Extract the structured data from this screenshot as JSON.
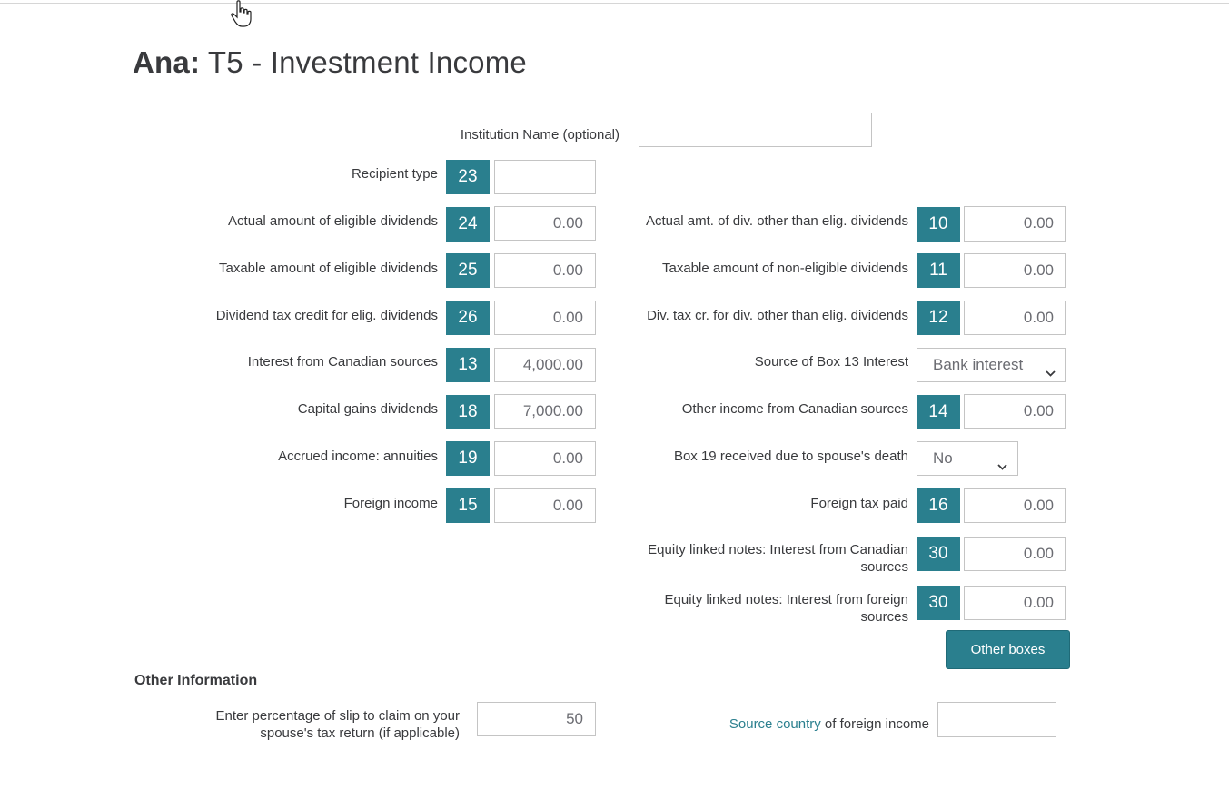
{
  "header": {
    "name": "Ana:",
    "title": "T5 - Investment Income"
  },
  "institution": {
    "label": "Institution Name (optional)",
    "value": ""
  },
  "left_rows": [
    {
      "label": "Recipient type",
      "box": "23",
      "value": ""
    },
    {
      "label": "Actual amount of eligible dividends",
      "box": "24",
      "value": "0.00"
    },
    {
      "label": "Taxable amount of eligible dividends",
      "box": "25",
      "value": "0.00"
    },
    {
      "label": "Dividend tax credit for elig. dividends",
      "box": "26",
      "value": "0.00"
    },
    {
      "label": "Interest from Canadian sources",
      "box": "13",
      "value": "4,000.00"
    },
    {
      "label": "Capital gains dividends",
      "box": "18",
      "value": "7,000.00"
    },
    {
      "label": "Accrued income: annuities",
      "box": "19",
      "value": "0.00"
    },
    {
      "label": "Foreign income",
      "box": "15",
      "value": "0.00"
    }
  ],
  "right_rows": [
    {
      "label": "Actual amt. of div. other than elig. dividends",
      "box": "10",
      "value": "0.00"
    },
    {
      "label": "Taxable amount of non-eligible dividends",
      "box": "11",
      "value": "0.00"
    },
    {
      "label": "Div. tax cr. for div. other than elig. dividends",
      "box": "12",
      "value": "0.00"
    },
    {
      "label": "Source of Box 13 Interest",
      "select": "Bank interest"
    },
    {
      "label": "Other income from Canadian sources",
      "box": "14",
      "value": "0.00"
    },
    {
      "label": "Box 19 received due to spouse's death",
      "select": "No"
    },
    {
      "label": "Foreign tax paid",
      "box": "16",
      "value": "0.00"
    },
    {
      "label": "Equity linked notes: Interest from Canadian sources",
      "box": "30",
      "value": "0.00"
    },
    {
      "label": "Equity linked notes: Interest from foreign sources",
      "box": "30",
      "value": "0.00"
    }
  ],
  "other_boxes_button": "Other boxes",
  "other_info": {
    "heading": "Other Information",
    "percentage_label": "Enter percentage of slip to claim on your spouse's tax return (if applicable)",
    "percentage_value": "50",
    "source_country_link": "Source country",
    "source_country_rest": " of foreign income",
    "source_country_value": ""
  },
  "colors": {
    "accent": "#2a7f8e",
    "text": "#393a3d",
    "border": "#c4c4c4"
  }
}
